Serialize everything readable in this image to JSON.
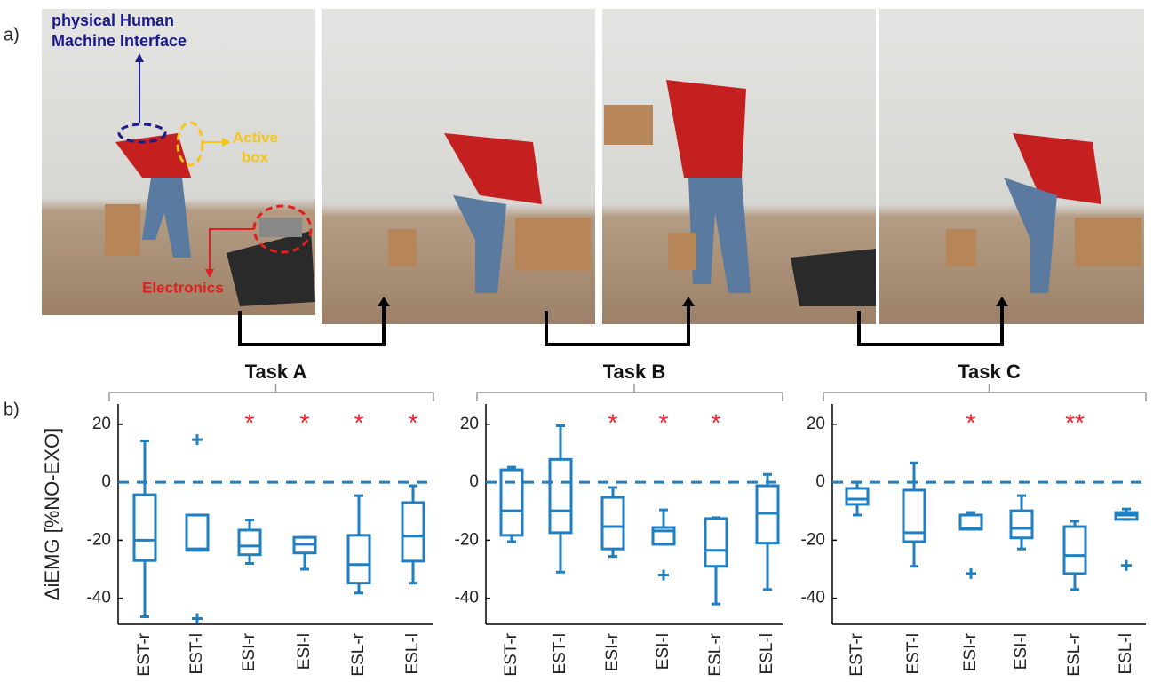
{
  "figure": {
    "panel_a_label": "a)",
    "panel_b_label": "b)",
    "hmi_label": [
      "physical Human",
      "Machine Interface"
    ],
    "active_box_label": [
      "Active",
      "box"
    ],
    "electronics_label": "Electronics"
  },
  "chart_data": [
    {
      "type": "box",
      "title": "Task A",
      "ylabel": "ΔiEMG [%NO-EXO]",
      "color": "#1f7fc0",
      "categories": [
        "EST-r",
        "EST-l",
        "ESI-r",
        "ESI-l",
        "ESL-r",
        "ESL-l"
      ],
      "ylim": [
        -49,
        27
      ],
      "yticks": [
        20,
        0,
        -20,
        -40
      ],
      "hline": 0,
      "significance": [
        null,
        null,
        "*",
        "*",
        "*",
        "*"
      ],
      "significance_color": "#e8222a",
      "boxes": [
        {
          "min": -46.4,
          "q1": -27,
          "median": -20,
          "q3": -4.3,
          "max": 14.3,
          "outliers": []
        },
        {
          "min": -23.5,
          "q1": -23.5,
          "median": -23,
          "q3": -11.3,
          "max": -11.3,
          "outliers": [
            14.7,
            -47
          ]
        },
        {
          "min": -28,
          "q1": -25,
          "median": -22,
          "q3": -16.5,
          "max": -13,
          "outliers": []
        },
        {
          "min": -30,
          "q1": -24.4,
          "median": -21.4,
          "q3": -19,
          "max": -19,
          "outliers": []
        },
        {
          "min": -38.2,
          "q1": -34.8,
          "median": -28.4,
          "q3": -18.3,
          "max": -4.6,
          "outliers": []
        },
        {
          "min": -34.8,
          "q1": -27.2,
          "median": -18.6,
          "q3": -7,
          "max": -1.2,
          "outliers": []
        }
      ]
    },
    {
      "type": "box",
      "title": "Task B",
      "color": "#1f7fc0",
      "categories": [
        "EST-r",
        "EST-l",
        "ESI-r",
        "ESI-l",
        "ESL-r",
        "ESL-l"
      ],
      "ylim": [
        -49,
        27
      ],
      "yticks": [
        20,
        0,
        -20,
        -40
      ],
      "hline": 0,
      "significance": [
        null,
        null,
        "*",
        "*",
        "*",
        null
      ],
      "significance_color": "#e8222a",
      "boxes": [
        {
          "min": -20.5,
          "q1": -18.3,
          "median": -9.8,
          "q3": 4.3,
          "max": 5.2,
          "outliers": []
        },
        {
          "min": -31,
          "q1": -17.4,
          "median": -9.8,
          "q3": 7.9,
          "max": 19.5,
          "outliers": []
        },
        {
          "min": -25.6,
          "q1": -23,
          "median": -15.3,
          "q3": -5.2,
          "max": -1.8,
          "outliers": []
        },
        {
          "min": -21.4,
          "q1": -21.4,
          "median": -16.8,
          "q3": -15.6,
          "max": -9.5,
          "outliers": [
            -32
          ]
        },
        {
          "min": -42,
          "q1": -29,
          "median": -23.5,
          "q3": -12.5,
          "max": -12.2,
          "outliers": []
        },
        {
          "min": -37,
          "q1": -21,
          "median": -10.7,
          "q3": -1.2,
          "max": 2.7,
          "outliers": []
        }
      ]
    },
    {
      "type": "box",
      "title": "Task C",
      "color": "#1f7fc0",
      "categories": [
        "EST-r",
        "EST-l",
        "ESI-r",
        "ESI-l",
        "ESL-r",
        "ESL-l"
      ],
      "ylim": [
        -49,
        27
      ],
      "yticks": [
        20,
        0,
        -20,
        -40
      ],
      "hline": 0,
      "significance": [
        null,
        null,
        "*",
        null,
        "**",
        null
      ],
      "significance_color": "#e8222a",
      "boxes": [
        {
          "min": -11.3,
          "q1": -7.6,
          "median": -5.8,
          "q3": -2.1,
          "max": 0,
          "outliers": []
        },
        {
          "min": -29,
          "q1": -20.5,
          "median": -17.4,
          "q3": -2.7,
          "max": 6.7,
          "outliers": []
        },
        {
          "min": -16.2,
          "q1": -16.2,
          "median": -15.9,
          "q3": -11.3,
          "max": -10.4,
          "outliers": [
            -31.5
          ]
        },
        {
          "min": -23,
          "q1": -19.2,
          "median": -15.9,
          "q3": -9.8,
          "max": -4.6,
          "outliers": []
        },
        {
          "min": -37,
          "q1": -31.5,
          "median": -25.3,
          "q3": -15.3,
          "max": -13.4,
          "outliers": []
        },
        {
          "min": -12.8,
          "q1": -12.8,
          "median": -11.3,
          "q3": -10.4,
          "max": -9.2,
          "outliers": [
            -28.7
          ]
        }
      ]
    }
  ]
}
